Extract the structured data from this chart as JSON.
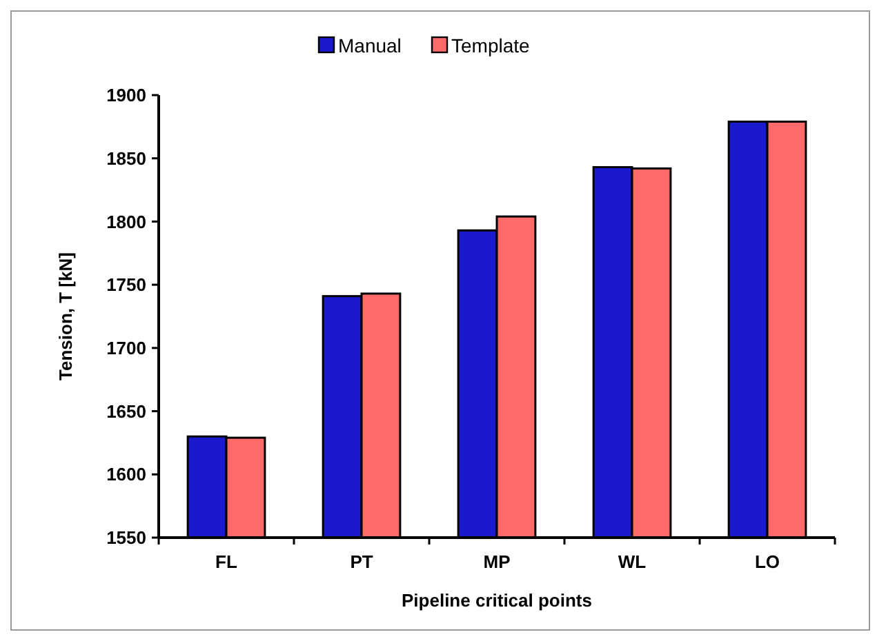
{
  "chart_data": {
    "type": "bar",
    "xlabel": "Pipeline critical points",
    "ylabel": "Tension, T [kN]",
    "categories": [
      "FL",
      "PT",
      "MP",
      "WL",
      "LO"
    ],
    "series": [
      {
        "name": "Manual",
        "color": "#1a1acc",
        "values": [
          1630,
          1741,
          1793,
          1843,
          1879
        ]
      },
      {
        "name": "Template",
        "color": "#ff6b6b",
        "values": [
          1629,
          1743,
          1804,
          1842,
          1879
        ]
      }
    ],
    "ylim": [
      1550,
      1900
    ],
    "yticks": [
      1550,
      1600,
      1650,
      1700,
      1750,
      1800,
      1850,
      1900
    ],
    "grid": false,
    "legend": "top"
  }
}
